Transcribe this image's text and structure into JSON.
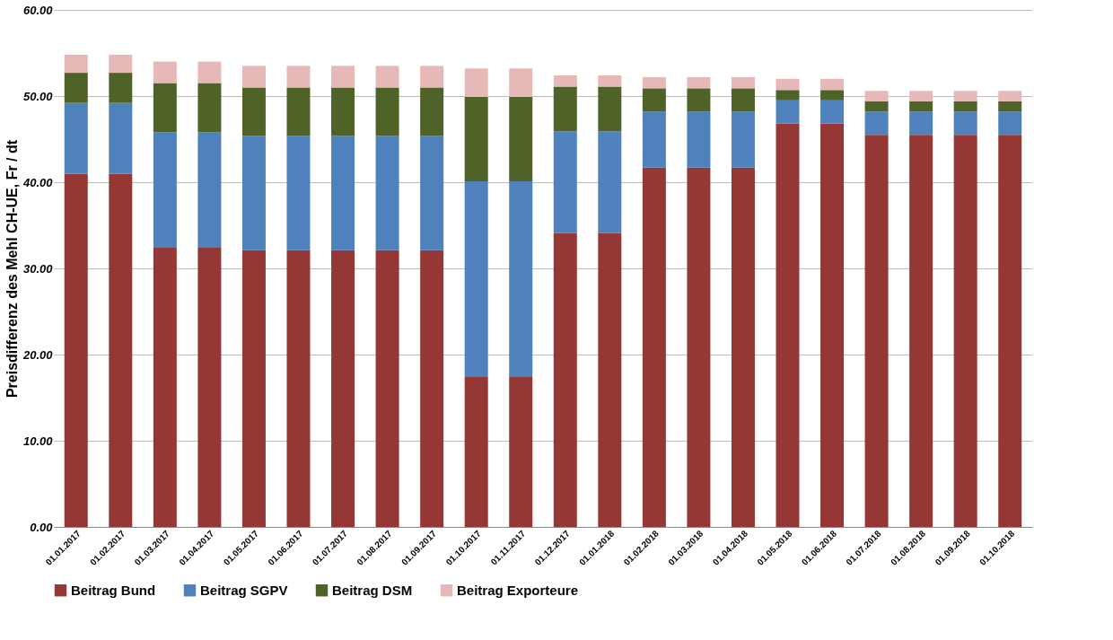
{
  "chart_data": {
    "type": "bar",
    "stacked": true,
    "ylabel": "Preisdifferenz des Mehl CH-UE, Fr / dt",
    "categories": [
      "01.01.2017",
      "01.02.2017",
      "01.03.2017",
      "01.04.2017",
      "01.05.2017",
      "01.06.2017",
      "01.07.2017",
      "01.08.2017",
      "01.09.2017",
      "01.10.2017",
      "01.11.2017",
      "01.12.2017",
      "01.01.2018",
      "01.02.2018",
      "01.03.2018",
      "01.04.2018",
      "01.05.2018",
      "01.06.2018",
      "01.07.2018",
      "01.08.2018",
      "01.09.2018",
      "01.10.2018"
    ],
    "series": [
      {
        "name": "Beitrag Bund",
        "color": "#953735",
        "values": [
          41.0,
          41.0,
          32.4,
          32.4,
          32.1,
          32.1,
          32.1,
          32.1,
          32.1,
          17.4,
          17.4,
          34.1,
          34.1,
          41.7,
          41.7,
          41.7,
          46.8,
          46.8,
          45.5,
          45.5,
          45.5,
          45.5
        ]
      },
      {
        "name": "Beitrag SGPV",
        "color": "#4f81bd",
        "values": [
          8.2,
          8.2,
          13.4,
          13.4,
          13.3,
          13.3,
          13.3,
          13.3,
          13.3,
          22.7,
          22.7,
          11.8,
          11.8,
          6.5,
          6.5,
          6.5,
          2.7,
          2.7,
          2.7,
          2.7,
          2.7,
          2.7
        ]
      },
      {
        "name": "Beitrag DSM",
        "color": "#4f6228",
        "values": [
          3.5,
          3.5,
          5.7,
          5.7,
          5.6,
          5.6,
          5.6,
          5.6,
          5.6,
          9.8,
          9.8,
          5.2,
          5.2,
          2.7,
          2.7,
          2.7,
          1.2,
          1.2,
          1.2,
          1.2,
          1.2,
          1.2
        ]
      },
      {
        "name": "Beitrag Exporteure",
        "color": "#e6b9b8",
        "values": [
          2.1,
          2.1,
          2.5,
          2.5,
          2.5,
          2.5,
          2.5,
          2.5,
          2.5,
          3.3,
          3.3,
          1.3,
          1.3,
          1.3,
          1.3,
          1.3,
          1.3,
          1.3,
          1.2,
          1.2,
          1.2,
          1.2
        ]
      }
    ],
    "ylim": [
      0,
      60
    ],
    "yticks": [
      {
        "value": 0,
        "label": "0.00"
      },
      {
        "value": 10,
        "label": "10.00"
      },
      {
        "value": 20,
        "label": "20.00"
      },
      {
        "value": 30,
        "label": "30.00"
      },
      {
        "value": 40,
        "label": "40.00"
      },
      {
        "value": 50,
        "label": "50.00"
      },
      {
        "value": 60,
        "label": "60.00"
      }
    ],
    "grid": "y",
    "legend": "bottom"
  }
}
